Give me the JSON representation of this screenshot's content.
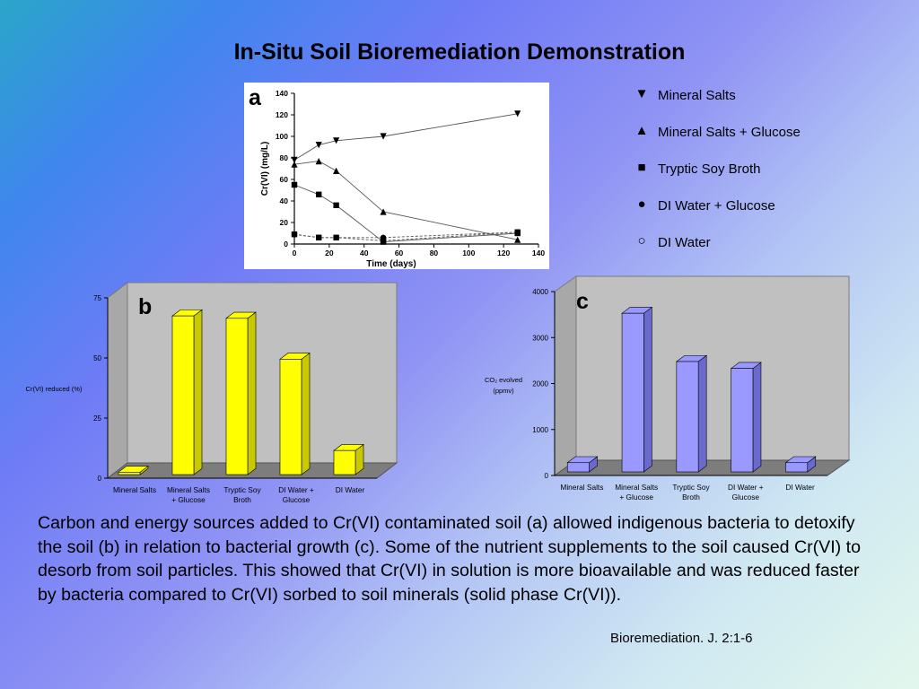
{
  "title": "In-Situ Soil Bioremediation Demonstration",
  "panels": {
    "a": "a",
    "b": "b",
    "c": "c"
  },
  "legend": [
    {
      "symbol": "▼",
      "label": "Mineral Salts"
    },
    {
      "symbol": "▲",
      "label": "Mineral Salts + Glucose"
    },
    {
      "symbol": "■",
      "label": "Tryptic Soy Broth"
    },
    {
      "symbol": "●",
      "label": "DI Water + Glucose"
    },
    {
      "symbol": "○",
      "label": "DI Water"
    }
  ],
  "body_text": "Carbon and energy sources added to Cr(VI) contaminated soil (a) allowed indigenous bacteria to detoxify the soil (b) in relation to bacterial growth (c).  Some of the nutrient supplements to the soil caused Cr(VI) to desorb from soil particles. This showed that Cr(VI) in solution is more bioavailable and was reduced faster by bacteria compared to Cr(VI) sorbed to soil minerals (solid phase Cr(VI)).",
  "citation": "Bioremediation. J. 2:1-6",
  "chart_data": [
    {
      "type": "line",
      "xlabel": "Time (days)",
      "ylabel": "Cr(VI) (mg/L)",
      "xlim": [
        0,
        140
      ],
      "ylim": [
        0,
        140
      ],
      "xticks": [
        0,
        20,
        40,
        60,
        80,
        100,
        120,
        140
      ],
      "yticks": [
        0,
        20,
        40,
        60,
        80,
        100,
        120,
        140
      ],
      "series": [
        {
          "name": "Mineral Salts",
          "marker": "triangle-down",
          "dash": "",
          "x": [
            0,
            14,
            24,
            51,
            128
          ],
          "y": [
            78,
            92,
            96,
            100,
            121
          ]
        },
        {
          "name": "Mineral Salts + Glucose",
          "marker": "triangle-up",
          "dash": "",
          "x": [
            0,
            14,
            24,
            51,
            128
          ],
          "y": [
            74,
            77,
            68,
            30,
            4
          ]
        },
        {
          "name": "Tryptic Soy Broth",
          "marker": "square",
          "dash": "",
          "x": [
            0,
            14,
            24,
            51,
            128
          ],
          "y": [
            55,
            46,
            36,
            2,
            10
          ]
        },
        {
          "name": "DI Water + Glucose",
          "marker": "circle",
          "dash": "3,2",
          "x": [
            0,
            14,
            24,
            51,
            128
          ],
          "y": [
            9,
            6,
            6,
            6,
            11
          ]
        },
        {
          "name": "DI Water",
          "marker": "square",
          "dash": "3,2",
          "x": [
            0,
            14,
            24,
            51,
            128
          ],
          "y": [
            9,
            6,
            6,
            3,
            11
          ]
        }
      ]
    },
    {
      "type": "bar",
      "ylabel": "Cr(VI) reduced (%)",
      "ylim": [
        0,
        75
      ],
      "yticks": [
        0,
        25,
        50,
        75
      ],
      "categories": [
        [
          "Mineral Salts"
        ],
        [
          "Mineral Salts",
          "+ Glucose"
        ],
        [
          "Tryptic Soy",
          "Broth"
        ],
        [
          "DI Water +",
          "Glucose"
        ],
        [
          "DI Water"
        ]
      ],
      "values": [
        1,
        66,
        65,
        48,
        10
      ],
      "color": "#ffff00",
      "side_color": "#c9c900"
    },
    {
      "type": "bar",
      "ylabel": [
        "CO₂ evolved",
        "(ppmv)"
      ],
      "ylim": [
        0,
        4000
      ],
      "yticks": [
        0,
        1000,
        2000,
        3000,
        4000
      ],
      "categories": [
        [
          "Mineral Salts"
        ],
        [
          "Mineral Salts",
          "+ Glucose"
        ],
        [
          "Tryptic Soy",
          "Broth"
        ],
        [
          "DI Water +",
          "Glucose"
        ],
        [
          "DI Water"
        ]
      ],
      "values": [
        200,
        3450,
        2400,
        2250,
        200
      ],
      "color": "#9999ff",
      "side_color": "#6a6acc"
    }
  ]
}
